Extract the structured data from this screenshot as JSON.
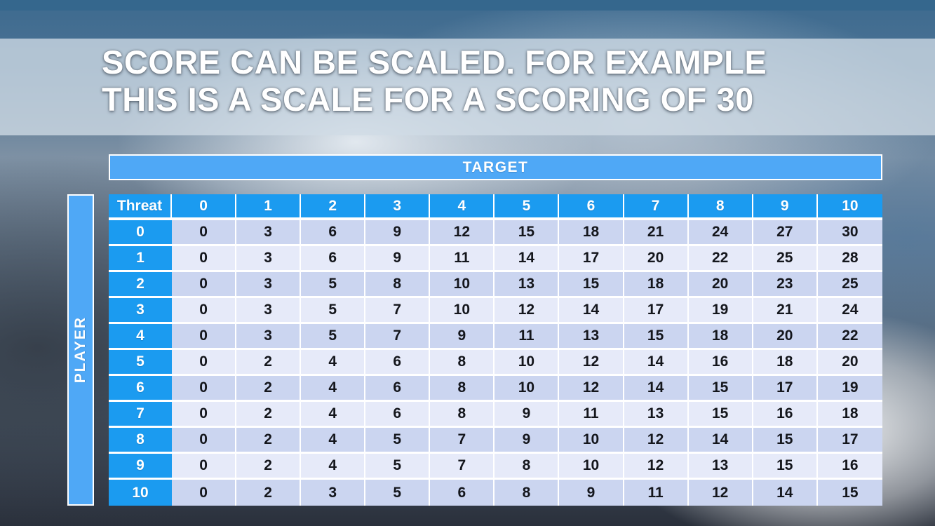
{
  "title": {
    "line1": "SCORE CAN BE SCALED. FOR EXAMPLE",
    "line2": "THIS IS A SCALE FOR A SCORING OF 30"
  },
  "matrix": {
    "target_label": "TARGET",
    "player_label": "PLAYER",
    "corner_label": "Threat",
    "col_headers": [
      "0",
      "1",
      "2",
      "3",
      "4",
      "5",
      "6",
      "7",
      "8",
      "9",
      "10"
    ],
    "rows": [
      {
        "header": "0",
        "values": [
          0,
          3,
          6,
          9,
          12,
          15,
          18,
          21,
          24,
          27,
          30
        ]
      },
      {
        "header": "1",
        "values": [
          0,
          3,
          6,
          9,
          11,
          14,
          17,
          20,
          22,
          25,
          28
        ]
      },
      {
        "header": "2",
        "values": [
          0,
          3,
          5,
          8,
          10,
          13,
          15,
          18,
          20,
          23,
          25
        ]
      },
      {
        "header": "3",
        "values": [
          0,
          3,
          5,
          7,
          10,
          12,
          14,
          17,
          19,
          21,
          24
        ]
      },
      {
        "header": "4",
        "values": [
          0,
          3,
          5,
          7,
          9,
          11,
          13,
          15,
          18,
          20,
          22
        ]
      },
      {
        "header": "5",
        "values": [
          0,
          2,
          4,
          6,
          8,
          10,
          12,
          14,
          16,
          18,
          20
        ]
      },
      {
        "header": "6",
        "values": [
          0,
          2,
          4,
          6,
          8,
          10,
          12,
          14,
          15,
          17,
          19
        ]
      },
      {
        "header": "7",
        "values": [
          0,
          2,
          4,
          6,
          8,
          9,
          11,
          13,
          15,
          16,
          18
        ]
      },
      {
        "header": "8",
        "values": [
          0,
          2,
          4,
          5,
          7,
          9,
          10,
          12,
          14,
          15,
          17
        ]
      },
      {
        "header": "9",
        "values": [
          0,
          2,
          4,
          5,
          7,
          8,
          10,
          12,
          13,
          15,
          16
        ]
      },
      {
        "header": "10",
        "values": [
          0,
          2,
          3,
          5,
          6,
          8,
          9,
          11,
          12,
          14,
          15
        ]
      }
    ]
  },
  "colors": {
    "header_blue": "#1b9bf0",
    "axis_band_blue": "#4fa8f6",
    "row_stripe_dark": "#cbd5f0",
    "row_stripe_light": "#e6eaf9",
    "top_accent_bar": "#35678d"
  }
}
